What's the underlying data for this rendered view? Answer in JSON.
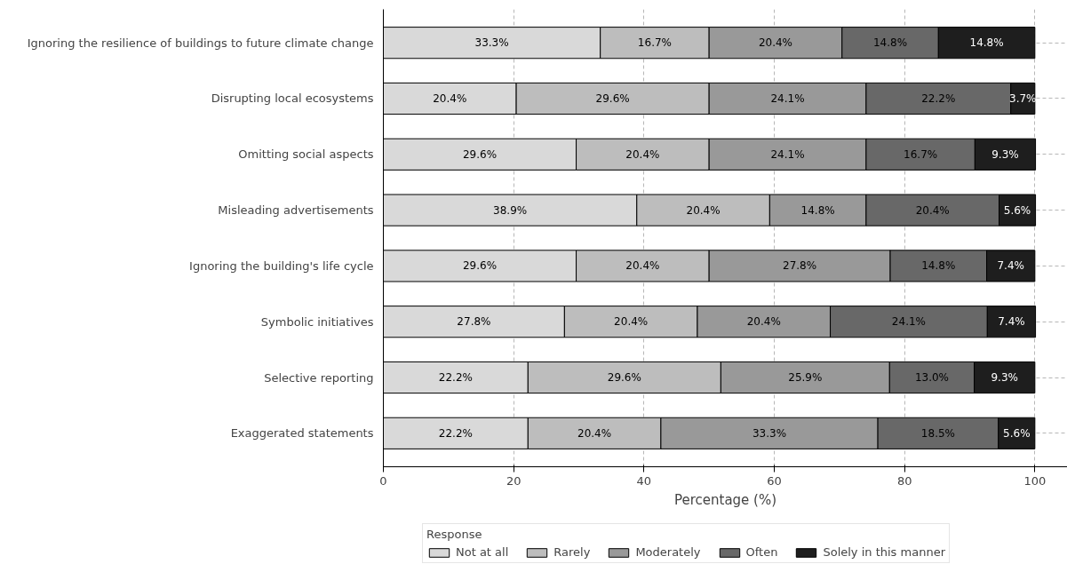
{
  "chart_data": {
    "type": "bar",
    "orientation": "horizontal",
    "stacked": true,
    "xlabel": "Percentage (%)",
    "legend_title": "Response",
    "legend": "bottom",
    "grid": true,
    "categories": [
      "Ignoring the resilience of buildings to future climate change",
      "Disrupting local ecosystems",
      "Omitting social aspects",
      "Misleading advertisements",
      "Ignoring the building's life cycle",
      "Symbolic initiatives",
      "Selective reporting",
      "Exaggerated statements"
    ],
    "xlim": [
      0,
      105
    ],
    "xticks": [
      0,
      20,
      40,
      60,
      80,
      100
    ],
    "series": [
      {
        "name": "Not at all",
        "color": "#d9d9d9",
        "values": [
          33.3,
          20.4,
          29.6,
          38.9,
          29.6,
          27.8,
          22.2,
          22.2
        ],
        "value_labels": [
          "33.3%",
          "20.4%",
          "29.6%",
          "38.9%",
          "29.6%",
          "27.8%",
          "22.2%",
          "22.2%"
        ]
      },
      {
        "name": "Rarely",
        "color": "#bdbdbd",
        "values": [
          16.7,
          29.6,
          20.4,
          20.4,
          20.4,
          20.4,
          29.6,
          20.4
        ],
        "value_labels": [
          "16.7%",
          "29.6%",
          "20.4%",
          "20.4%",
          "20.4%",
          "20.4%",
          "29.6%",
          "20.4%"
        ]
      },
      {
        "name": "Moderately",
        "color": "#999999",
        "values": [
          20.4,
          24.1,
          24.1,
          14.8,
          27.8,
          20.4,
          25.9,
          33.3
        ],
        "value_labels": [
          "20.4%",
          "24.1%",
          "24.1%",
          "14.8%",
          "27.8%",
          "20.4%",
          "25.9%",
          "33.3%"
        ]
      },
      {
        "name": "Often",
        "color": "#686868",
        "values": [
          14.8,
          22.2,
          16.7,
          20.4,
          14.8,
          24.1,
          13.0,
          18.5
        ],
        "value_labels": [
          "14.8%",
          "22.2%",
          "16.7%",
          "20.4%",
          "14.8%",
          "24.1%",
          "13.0%",
          "18.5%"
        ]
      },
      {
        "name": "Solely in this manner",
        "color": "#1e1e1e",
        "values": [
          14.8,
          3.7,
          9.3,
          5.6,
          7.4,
          7.4,
          9.3,
          5.6
        ],
        "value_labels": [
          "14.8%",
          "3.7%",
          "9.3%",
          "5.6%",
          "7.4%",
          "7.4%",
          "9.3%",
          "5.6%"
        ]
      }
    ]
  }
}
